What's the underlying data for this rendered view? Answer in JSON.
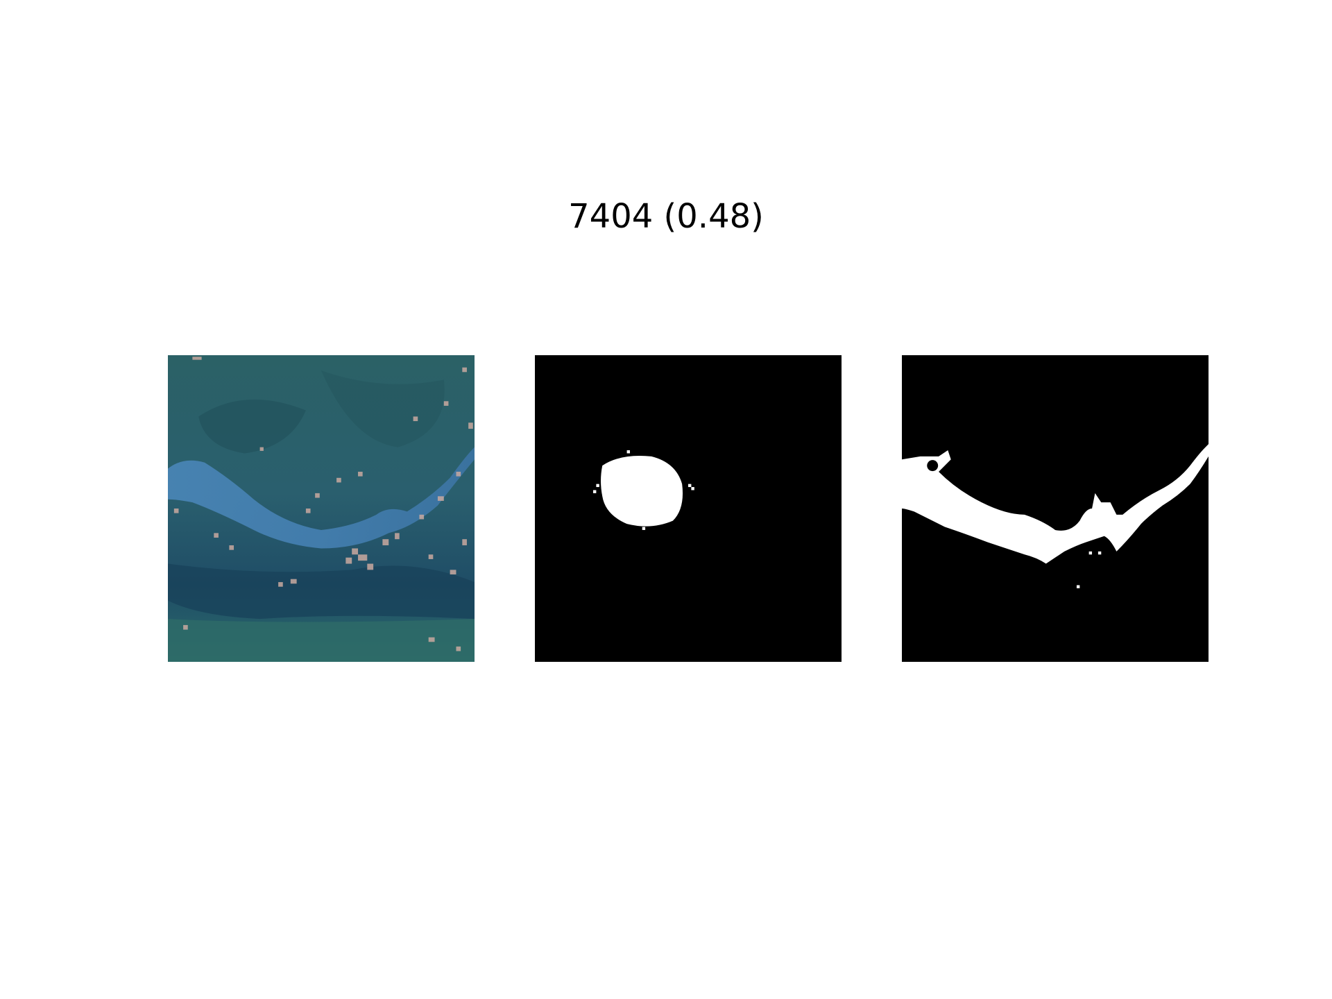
{
  "figure": {
    "title": "7404 (0.48)"
  },
  "panels": [
    {
      "content": "satellite-image"
    },
    {
      "content": "binary-mask"
    },
    {
      "content": "binary-mask"
    }
  ],
  "colors": {
    "background": "#ffffff",
    "mask_background": "#000000",
    "mask_foreground": "#ffffff",
    "land_dark": "#1d4a5c",
    "land_green": "#2f6a6a",
    "water": "#3f7fb0",
    "speckle": "#c9a9a0"
  }
}
